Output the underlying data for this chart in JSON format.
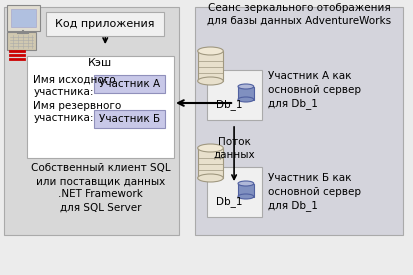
{
  "bg_color": "#ececec",
  "left_panel_bg": "#d8d8d8",
  "right_panel_bg": "#d4d4dc",
  "cache_box_bg": "#ffffff",
  "participant_a_box_color": "#c8c8e8",
  "participant_b_box_color": "#c8c8e8",
  "red_color": "#cc0000",
  "title_right": "Сеанс зеркального отображения\nдля базы данных AdventureWorks",
  "app_code_label": "Код приложения",
  "cache_label": "Кэш",
  "source_label": "Имя исходного\nучастника:",
  "reserve_label": "Имя резервного\nучастника:",
  "participant_a": "Участник А",
  "participant_b": "Участник Б",
  "bottom_label": "Собственный клиент SQL\nили поставщик данных\n.NET Framework\nдля SQL Server",
  "db1_label_top": "Db_1",
  "db1_label_bot": "Db_1",
  "participant_a_label": "Участник А как\nосновной сервер\nдля Db_1",
  "participant_b_label": "Участник Б как\nосновной сервер\nдля Db_1",
  "data_flow_label": "Поток\nданных",
  "server_body_color": "#e8e0cc",
  "server_edge_color": "#a09880",
  "db_color": "#8090c0",
  "db_edge_color": "#5060a0",
  "db_top_color": "#b0b8d8"
}
